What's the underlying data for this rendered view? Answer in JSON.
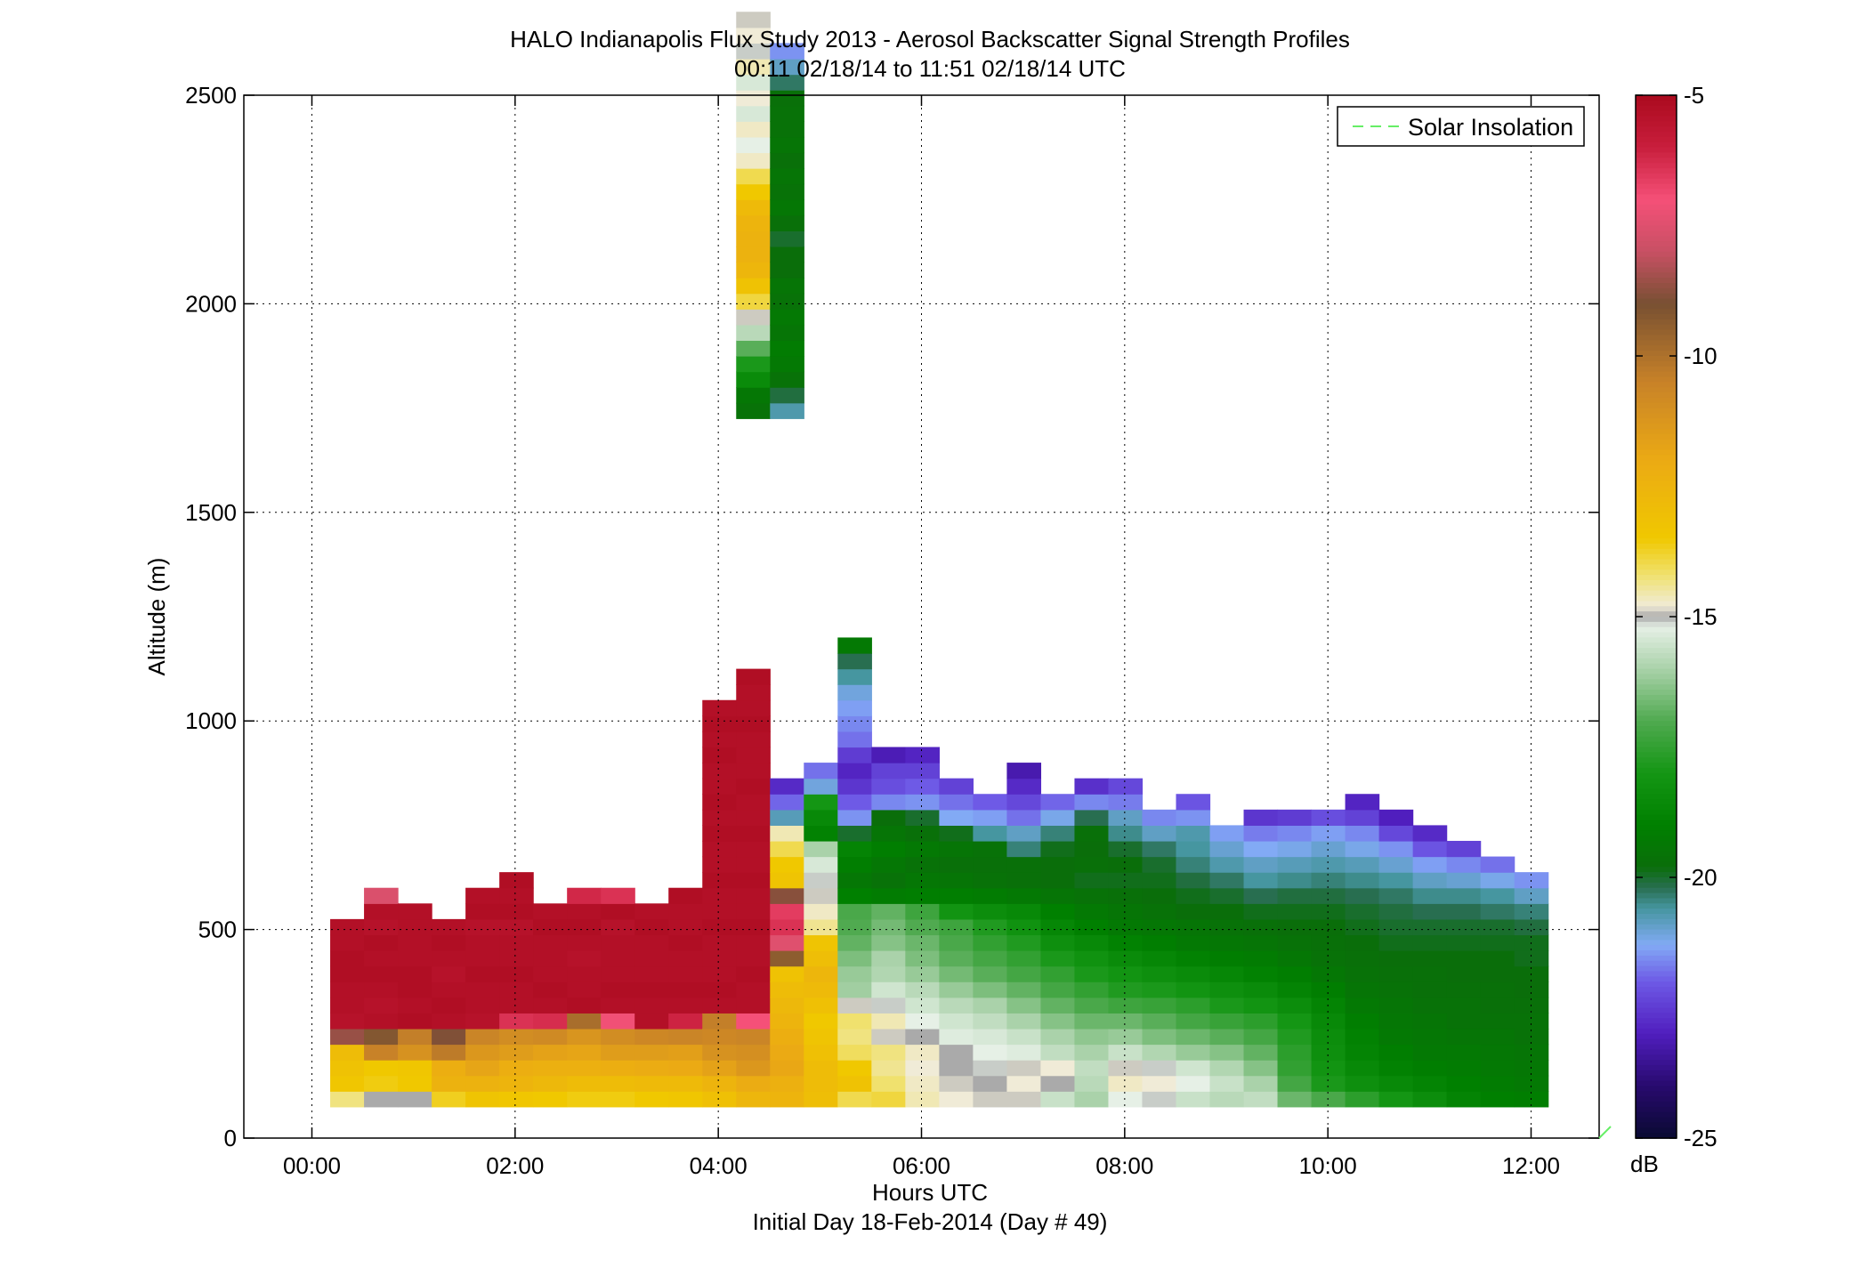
{
  "chart_data": {
    "type": "heatmap",
    "title": "HALO Indianapolis Flux Study 2013 - Aerosol Backscatter Signal Strength Profiles",
    "subtitle": "00:11 02/18/14 to 11:51 02/18/14  UTC",
    "xlabel": "Hours UTC",
    "xlabel2": "Initial Day 18-Feb-2014 (Day # 49)",
    "ylabel": "Altitude (m)",
    "xlim_hours": [
      -0.67,
      12.67
    ],
    "ylim": [
      0,
      2500
    ],
    "x_ticks": [
      0,
      2,
      4,
      6,
      8,
      10,
      12
    ],
    "x_tick_labels": [
      "00:00",
      "02:00",
      "04:00",
      "06:00",
      "08:00",
      "10:00",
      "12:00"
    ],
    "y_ticks": [
      0,
      500,
      1000,
      1500,
      2000,
      2500
    ],
    "y_tick_labels": [
      "0",
      "500",
      "1000",
      "1500",
      "2000",
      "2500"
    ],
    "grid": true,
    "legend": {
      "entries": [
        "Solar Insolation"
      ],
      "placement": "top-right",
      "line_color": "#66ee66"
    },
    "colorbar": {
      "unit": "dB",
      "range": [
        -25,
        -5
      ],
      "ticks": [
        -25,
        -20,
        -15,
        -10,
        -5
      ],
      "tick_labels": [
        "-25",
        "-20",
        "-15",
        "-10",
        "-5"
      ]
    },
    "columns_start_hour": 0.18,
    "column_width_hours": 0.333,
    "gate_bottom_m": 75,
    "gate_height_m": 37.5,
    "profiles_db": [
      [
        -14.3,
        -13.4,
        -13.2,
        -12.9,
        -8.6,
        -5.4,
        -5.3,
        -5.3,
        -5.2,
        -5.2,
        -5.3,
        -5.3
      ],
      [
        -15.0,
        -13.6,
        -13.5,
        -10.5,
        -9.2,
        -5.3,
        -5.4,
        -5.3,
        -5.2,
        -5.3,
        -5.2,
        -5.4,
        -5.3,
        -7.6
      ],
      [
        -15.0,
        -13.5,
        -13.4,
        -11.1,
        -10.4,
        -5.2,
        -5.3,
        -5.2,
        -5.2,
        -5.3,
        -5.3,
        -5.3,
        -5.3
      ],
      [
        -13.7,
        -12.4,
        -12.2,
        -10.3,
        -8.9,
        -5.3,
        -5.2,
        -5.3,
        -5.4,
        -5.3,
        -5.2,
        -5.3
      ],
      [
        -13.3,
        -12.4,
        -11.8,
        -11.3,
        -10.6,
        -5.4,
        -5.3,
        -5.3,
        -5.2,
        -5.3,
        -5.3,
        -5.4,
        -5.2,
        -5.3
      ],
      [
        -13.4,
        -12.5,
        -12.2,
        -11.5,
        -10.9,
        -6.4,
        -5.3,
        -5.3,
        -5.2,
        -5.3,
        -5.3,
        -5.4,
        -5.2,
        -5.3,
        -5.2
      ],
      [
        -13.5,
        -12.7,
        -12.3,
        -11.7,
        -10.8,
        -6.3,
        -5.3,
        -5.2,
        -5.3,
        -5.3,
        -5.3,
        -5.2,
        -5.3
      ],
      [
        -13.6,
        -12.9,
        -12.3,
        -11.8,
        -11.2,
        -9.9,
        -5.2,
        -5.3,
        -5.3,
        -5.4,
        -5.3,
        -5.2,
        -5.3,
        -6.2
      ],
      [
        -13.6,
        -12.9,
        -12.2,
        -11.5,
        -10.9,
        -7.1,
        -5.3,
        -5.2,
        -5.3,
        -5.3,
        -5.3,
        -5.4,
        -5.2,
        -6.4
      ],
      [
        -13.5,
        -12.8,
        -12.1,
        -11.5,
        -10.7,
        -5.3,
        -5.3,
        -5.2,
        -5.3,
        -5.3,
        -5.3,
        -5.2,
        -5.3
      ],
      [
        -13.4,
        -12.8,
        -12.0,
        -11.6,
        -10.6,
        -6.1,
        -5.3,
        -5.2,
        -5.3,
        -5.3,
        -5.2,
        -5.3,
        -5.3,
        -5.2
      ],
      [
        -13.1,
        -12.5,
        -11.7,
        -11.1,
        -10.7,
        -10.4,
        -5.3,
        -5.2,
        -5.3,
        -5.3,
        -5.3,
        -5.2,
        -5.3,
        -5.3,
        -5.2,
        -5.3,
        -5.3,
        -5.2,
        -5.3,
        -5.2,
        -5.3,
        -5.3,
        -5.2,
        -5.3,
        -5.2,
        -5.3
      ],
      [
        -12.6,
        -12.1,
        -11.3,
        -11.0,
        -10.6,
        -7.0,
        -5.3,
        -5.3,
        -5.2,
        -5.3,
        -5.3,
        -5.2,
        -5.3,
        -5.3,
        -5.2,
        -5.3,
        -5.3,
        -5.2,
        -5.3,
        -5.3,
        -5.2,
        -5.3,
        -5.3,
        -5.3,
        -5.2,
        -5.3,
        -5.3,
        -5.2
      ],
      [
        -12.5,
        -12.3,
        -11.9,
        -12.0,
        -12.2,
        -12.5,
        -12.7,
        -12.9,
        -13.2,
        -9.4,
        -7.5,
        -6.4,
        -6.6,
        -8.8,
        -13.3,
        -13.5,
        -14.0,
        -14.6,
        -20.8,
        -21.9,
        -22.8
      ],
      [
        -13.0,
        -12.9,
        -12.9,
        -13.1,
        -13.3,
        -13.5,
        -13.1,
        -12.8,
        -12.6,
        -13.0,
        -13.3,
        -14.4,
        -14.7,
        -14.9,
        -15.1,
        -15.4,
        -16.0,
        -18.9,
        -18.6,
        -18.0,
        -21.1,
        -21.8
      ],
      [
        -14.0,
        -13.2,
        -13.5,
        -14.1,
        -14.3,
        -14.2,
        -14.9,
        -16.1,
        -16.2,
        -16.5,
        -16.8,
        -17.0,
        -17.1,
        -19.0,
        -19.4,
        -19.1,
        -18.8,
        -20.0,
        -21.5,
        -22.0,
        -22.6,
        -22.9,
        -22.5,
        -21.8,
        -21.6,
        -21.4,
        -21.1,
        -20.6,
        -20.2,
        -19.3
      ],
      [
        -13.9,
        -14.2,
        -14.4,
        -14.3,
        -14.9,
        -14.6,
        -15.1,
        -15.5,
        -15.9,
        -16.0,
        -16.4,
        -16.6,
        -16.8,
        -19.2,
        -19.6,
        -19.4,
        -19.1,
        -19.5,
        -19.8,
        -21.6,
        -22.2,
        -22.4,
        -23.1
      ],
      [
        -14.6,
        -14.7,
        -14.8,
        -14.7,
        -15.0,
        -15.2,
        -15.5,
        -15.8,
        -16.2,
        -16.5,
        -16.7,
        -17.0,
        -17.3,
        -19.1,
        -19.4,
        -19.6,
        -19.3,
        -19.7,
        -20.0,
        -21.5,
        -22.0,
        -22.4,
        -22.9
      ],
      [
        -14.8,
        -14.9,
        -15.0,
        -15.0,
        -15.3,
        -15.5,
        -15.8,
        -16.2,
        -16.6,
        -16.9,
        -17.1,
        -17.3,
        -18.1,
        -19.1,
        -19.5,
        -19.7,
        -19.5,
        -19.9,
        -21.3,
        -21.8,
        -22.4
      ],
      [
        -14.9,
        -15.0,
        -15.1,
        -15.2,
        -15.4,
        -15.7,
        -16.0,
        -16.5,
        -16.9,
        -17.2,
        -17.5,
        -17.8,
        -18.4,
        -19.2,
        -19.6,
        -19.7,
        -19.6,
        -20.6,
        -21.4,
        -22.0
      ],
      [
        -14.9,
        -14.8,
        -14.9,
        -15.3,
        -15.6,
        -16.0,
        -16.4,
        -16.8,
        -17.2,
        -17.5,
        -17.8,
        -18.2,
        -18.6,
        -19.3,
        -19.7,
        -19.7,
        -20.4,
        -20.9,
        -21.8,
        -22.3,
        -22.8,
        -23.2
      ],
      [
        -15.6,
        -15.0,
        -14.8,
        -15.7,
        -16.0,
        -16.4,
        -16.8,
        -17.2,
        -17.5,
        -17.9,
        -18.3,
        -18.7,
        -19.0,
        -19.5,
        -19.8,
        -19.8,
        -19.9,
        -20.4,
        -21.2,
        -21.9
      ],
      [
        -16.0,
        -15.8,
        -15.7,
        -16.0,
        -16.3,
        -16.7,
        -17.1,
        -17.5,
        -17.9,
        -18.2,
        -18.6,
        -19.0,
        -19.3,
        -19.6,
        -19.9,
        -19.7,
        -19.8,
        -19.7,
        -20.2,
        -21.6,
        -22.7
      ],
      [
        -15.2,
        -14.7,
        -14.9,
        -15.6,
        -16.2,
        -16.7,
        -17.3,
        -17.8,
        -18.1,
        -18.5,
        -18.9,
        -19.3,
        -19.5,
        -19.7,
        -19.9,
        -19.8,
        -20.0,
        -20.5,
        -20.9,
        -21.7,
        -22.3
      ],
      [
        -15.1,
        -14.8,
        -15.1,
        -15.9,
        -16.5,
        -16.9,
        -17.4,
        -17.9,
        -18.3,
        -18.7,
        -19.1,
        -19.4,
        -19.6,
        -19.8,
        -19.9,
        -20.0,
        -20.3,
        -20.9,
        -21.6
      ],
      [
        -15.6,
        -15.2,
        -15.5,
        -16.2,
        -16.7,
        -17.2,
        -17.6,
        -18.1,
        -18.5,
        -18.9,
        -19.3,
        -19.5,
        -19.8,
        -19.9,
        -20.1,
        -20.4,
        -20.6,
        -20.7,
        -21.5,
        -22.1
      ],
      [
        -15.8,
        -15.6,
        -15.9,
        -16.4,
        -16.9,
        -17.4,
        -17.9,
        -18.3,
        -18.7,
        -19.1,
        -19.4,
        -19.6,
        -19.8,
        -20.0,
        -20.3,
        -20.7,
        -21.0,
        -21.4
      ],
      [
        -15.7,
        -16.0,
        -16.4,
        -16.8,
        -17.2,
        -17.6,
        -18.1,
        -18.5,
        -18.9,
        -19.2,
        -19.5,
        -19.7,
        -19.9,
        -20.2,
        -20.6,
        -20.9,
        -21.3,
        -21.7,
        -22.6
      ],
      [
        -16.7,
        -17.2,
        -17.5,
        -17.6,
        -17.8,
        -18.0,
        -18.4,
        -18.8,
        -19.1,
        -19.4,
        -19.6,
        -19.8,
        -19.9,
        -20.1,
        -20.5,
        -20.8,
        -21.2,
        -21.6,
        -22.5
      ],
      [
        -17.1,
        -17.9,
        -18.1,
        -18.3,
        -18.4,
        -18.6,
        -18.8,
        -19.1,
        -19.4,
        -19.6,
        -19.7,
        -19.8,
        -19.9,
        -20.1,
        -20.4,
        -20.7,
        -21.0,
        -21.4,
        -22.2
      ],
      [
        -17.6,
        -18.3,
        -18.6,
        -18.8,
        -18.9,
        -19.1,
        -19.3,
        -19.5,
        -19.6,
        -19.7,
        -19.8,
        -19.9,
        -20.0,
        -20.2,
        -20.5,
        -20.8,
        -21.2,
        -21.6,
        -22.4,
        -22.9
      ],
      [
        -18.0,
        -18.6,
        -18.9,
        -19.1,
        -19.3,
        -19.4,
        -19.5,
        -19.6,
        -19.7,
        -19.8,
        -19.9,
        -20.0,
        -20.1,
        -20.3,
        -20.6,
        -21.0,
        -21.5,
        -22.3,
        -23.0
      ],
      [
        -18.4,
        -18.8,
        -19.1,
        -19.3,
        -19.4,
        -19.5,
        -19.6,
        -19.7,
        -19.7,
        -19.8,
        -19.9,
        -20.0,
        -20.2,
        -20.5,
        -20.9,
        -21.4,
        -22.1,
        -22.8
      ],
      [
        -18.8,
        -19.0,
        -19.2,
        -19.3,
        -19.5,
        -19.6,
        -19.6,
        -19.7,
        -19.8,
        -19.8,
        -19.9,
        -20.0,
        -20.2,
        -20.5,
        -21.0,
        -21.6,
        -22.4
      ],
      [
        -19.0,
        -19.2,
        -19.3,
        -19.4,
        -19.5,
        -19.6,
        -19.7,
        -19.7,
        -19.8,
        -19.8,
        -19.9,
        -20.0,
        -20.3,
        -20.6,
        -21.2,
        -21.8
      ],
      [
        -19.1,
        -19.3,
        -19.4,
        -19.5,
        -19.6,
        -19.6,
        -19.7,
        -19.8,
        -19.8,
        -19.9,
        -19.9,
        -20.1,
        -20.4,
        -20.9,
        -21.5
      ]
    ],
    "aloft_layer": {
      "bottom_m": 1725,
      "gate_height_m": 37.5,
      "profiles_db": [
        [
          -19.6,
          -19.4,
          -18.5,
          -17.9,
          -16.9,
          -15.8,
          -14.9,
          -13.9,
          -13.2,
          -12.6,
          -12.4,
          -12.4,
          -12.5,
          -12.8,
          -13.5,
          -14.0,
          -14.7,
          -15.2,
          -14.7,
          -15.4,
          -14.8,
          -15.4,
          -14.6,
          -15.1,
          -14.8,
          -14.9
        ],
        [
          -20.7,
          -20.1,
          -19.6,
          -19.3,
          -19.2,
          -19.5,
          -19.3,
          -19.6,
          -19.5,
          -19.8,
          -19.8,
          -20.0,
          -19.7,
          -19.4,
          -19.6,
          -19.5,
          -19.7,
          -19.5,
          -19.6,
          -19.6,
          -19.7,
          -20.3,
          -20.9,
          -21.5
        ]
      ]
    }
  }
}
